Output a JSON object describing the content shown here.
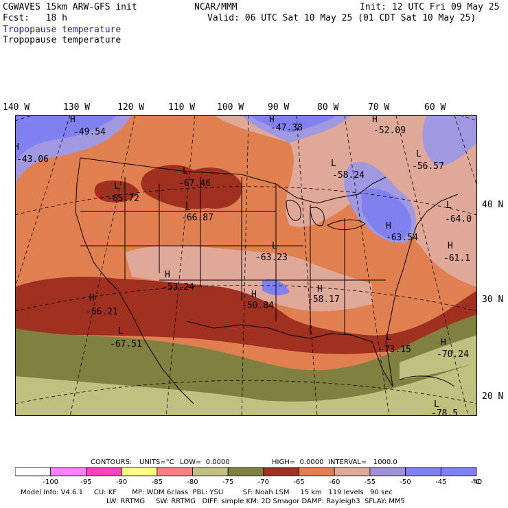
{
  "header": {
    "model_title": "CGWAVES 15km ARW-GFS init",
    "forecast": "Fcst:   18 h",
    "org": "NCAR/MMM",
    "init": "Init: 12 UTC Fri 09 May 25",
    "valid": "Valid: 06 UTC Sat 10 May 25 (01 CDT Sat 10 May 25)",
    "field_title_1": "Tropopause temperature",
    "field_title_2": "Tropopause temperature"
  },
  "longitude_labels": [
    "140 W",
    "130 W",
    "120 W",
    "110 W",
    "100 W",
    "90 W",
    "80 W",
    "70 W",
    "60 W"
  ],
  "latitude_labels": [
    "40 N",
    "30 N",
    "20 N"
  ],
  "map_labels": [
    {
      "type": "H",
      "value": "-49.54"
    },
    {
      "type": "H",
      "value": "-43.06"
    },
    {
      "type": "H",
      "value": "-47.38"
    },
    {
      "type": "H",
      "value": "-52.09"
    },
    {
      "type": "L",
      "value": "-56.57"
    },
    {
      "type": "L",
      "value": "-58.24"
    },
    {
      "type": "L",
      "value": "-67.46"
    },
    {
      "type": "L",
      "value": "-65.72"
    },
    {
      "type": "L",
      "value": "-66.87"
    },
    {
      "type": "L",
      "value": "-64.0"
    },
    {
      "type": "H",
      "value": "-63.54"
    },
    {
      "type": "H",
      "value": "-61.1"
    },
    {
      "type": "L",
      "value": "-63.23"
    },
    {
      "type": "H",
      "value": "-53.24"
    },
    {
      "type": "H",
      "value": "-50.84"
    },
    {
      "type": "H",
      "value": "-58.17"
    },
    {
      "type": "H",
      "value": "-66.21"
    },
    {
      "type": "L",
      "value": "-67.51"
    },
    {
      "type": "L",
      "value": "-73.15"
    },
    {
      "type": "H",
      "value": "-70.24"
    },
    {
      "type": "L",
      "value": "-78.5"
    }
  ],
  "contours": {
    "label": "CONTOURS:",
    "units": "UNITS=°C",
    "low": "LOW=  0.0000",
    "high": "HIGH=  0.0000",
    "interval": "INTERVAL=   1000.0"
  },
  "legend": {
    "ticks": [
      "-100",
      "-95",
      "-90",
      "-85",
      "-80",
      "-75",
      "-70",
      "-65",
      "-60",
      "-55",
      "-50",
      "-45",
      "-40"
    ],
    "unit": "°C",
    "colors": [
      "#ffffff",
      "#ff80ff",
      "#ff40c0",
      "#ffff80",
      "#ff8080",
      "#c0c080",
      "#808040",
      "#a03020",
      "#e08050",
      "#e0a898",
      "#a090d8",
      "#8080f0",
      "#8080ff"
    ]
  },
  "footer": {
    "line1": "Model Info: V4.6.1     CU: KF       MP: WDM 6class  PBL: YSU         SF: Noah LSM     15 km   119 levels   90 sec",
    "line2": "LW: RRTMG     SW: RRTMG   DIFF: simple KM: 2D Smagor DAMP: Rayleigh3  SFLAY: MM5"
  },
  "colors": {
    "blue_lo": "#8080f0",
    "lavender": "#a098e0",
    "pink": "#e0a898",
    "orange": "#e08050",
    "darkred": "#a03020",
    "olive": "#808040",
    "khaki": "#c0c080",
    "title_blue": "#1a1aa0"
  }
}
